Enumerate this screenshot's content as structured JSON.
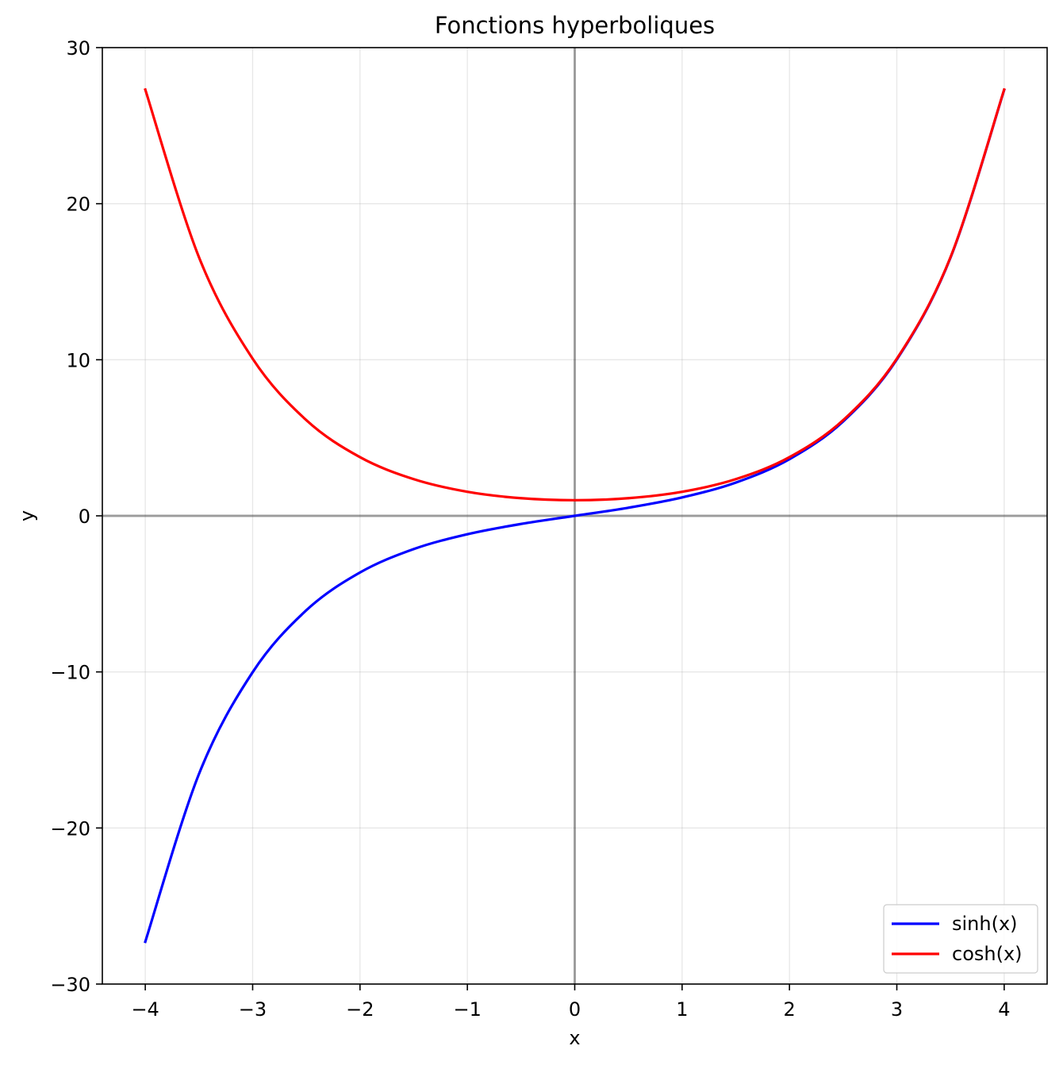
{
  "chart_data": {
    "type": "line",
    "title": "Fonctions hyperboliques",
    "xlabel": "x",
    "ylabel": "y",
    "xlim": [
      -4.4,
      4.4
    ],
    "ylim": [
      -30,
      30
    ],
    "x_ticks": [
      -4,
      -3,
      -2,
      -1,
      0,
      1,
      2,
      3,
      4
    ],
    "x_tick_labels": [
      "−4",
      "−3",
      "−2",
      "−1",
      "0",
      "1",
      "2",
      "3",
      "4"
    ],
    "y_ticks": [
      -30,
      -20,
      -10,
      0,
      10,
      20,
      30
    ],
    "y_tick_labels": [
      "−30",
      "−20",
      "−10",
      "0",
      "10",
      "20",
      "30"
    ],
    "grid": true,
    "reference_lines": [
      "x = 0",
      "y = 0"
    ],
    "legend_position": "lower right",
    "x": [
      -4.0,
      -3.5,
      -3.0,
      -2.5,
      -2.0,
      -1.5,
      -1.0,
      -0.5,
      0.0,
      0.5,
      1.0,
      1.5,
      2.0,
      2.5,
      3.0,
      3.5,
      4.0
    ],
    "series": [
      {
        "name": "sinh(x)",
        "color": "#0000ff",
        "values": [
          -27.29,
          -16.54,
          -10.02,
          -6.05,
          -3.63,
          -2.13,
          -1.18,
          -0.52,
          0.0,
          0.52,
          1.18,
          2.13,
          3.63,
          6.05,
          10.02,
          16.54,
          27.29
        ]
      },
      {
        "name": "cosh(x)",
        "color": "#ff0000",
        "values": [
          27.31,
          16.57,
          10.07,
          6.13,
          3.76,
          2.35,
          1.54,
          1.13,
          1.0,
          1.13,
          1.54,
          2.35,
          3.76,
          6.13,
          10.07,
          16.57,
          27.31
        ]
      }
    ]
  }
}
